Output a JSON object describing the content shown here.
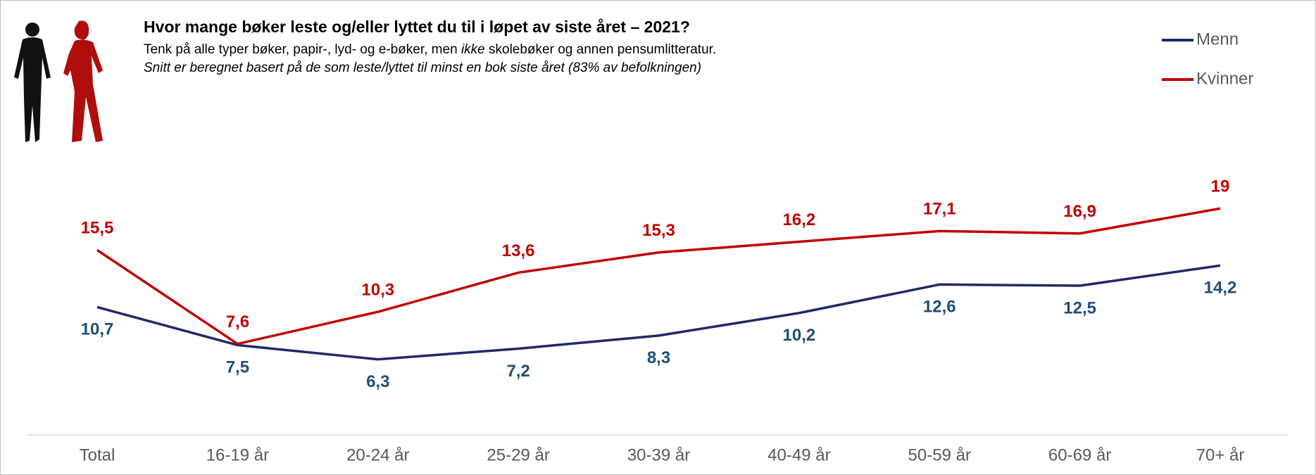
{
  "chart_data": {
    "type": "line",
    "title": "Hvor mange bøker leste og/eller lyttet du til i løpet av siste året – 2021?",
    "subtitle": [
      "Tenk på alle typer bøker, papir-, lyd- og e-bøker, men ",
      "ikke",
      " skolebøker og annen pensumlitteratur."
    ],
    "note": "Snitt er beregnet basert på de som leste/lyttet til minst en bok siste året (83% av befolkningen)",
    "categories": [
      "Total",
      "16-19 år",
      "20-24 år",
      "25-29 år",
      "30-39 år",
      "40-49 år",
      "50-59 år",
      "60-69 år",
      "70+ år"
    ],
    "series": [
      {
        "name": "Menn",
        "color": "#1f2a66",
        "label_color": "#1f4e79",
        "values": [
          10.7,
          7.5,
          6.3,
          7.2,
          8.3,
          10.2,
          12.6,
          12.5,
          14.2
        ],
        "value_labels": [
          "10,7",
          "7,5",
          "6,3",
          "7,2",
          "8,3",
          "10,2",
          "12,6",
          "12,5",
          "14,2"
        ]
      },
      {
        "name": "Kvinner",
        "color": "#c00000",
        "label_color": "#c00000",
        "values": [
          15.5,
          7.6,
          10.3,
          13.6,
          15.3,
          16.2,
          17.1,
          16.9,
          19
        ],
        "value_labels": [
          "15,5",
          "7,6",
          "10,3",
          "13,6",
          "15,3",
          "16,2",
          "17,1",
          "16,9",
          "19"
        ]
      }
    ],
    "legend": "top-right"
  }
}
